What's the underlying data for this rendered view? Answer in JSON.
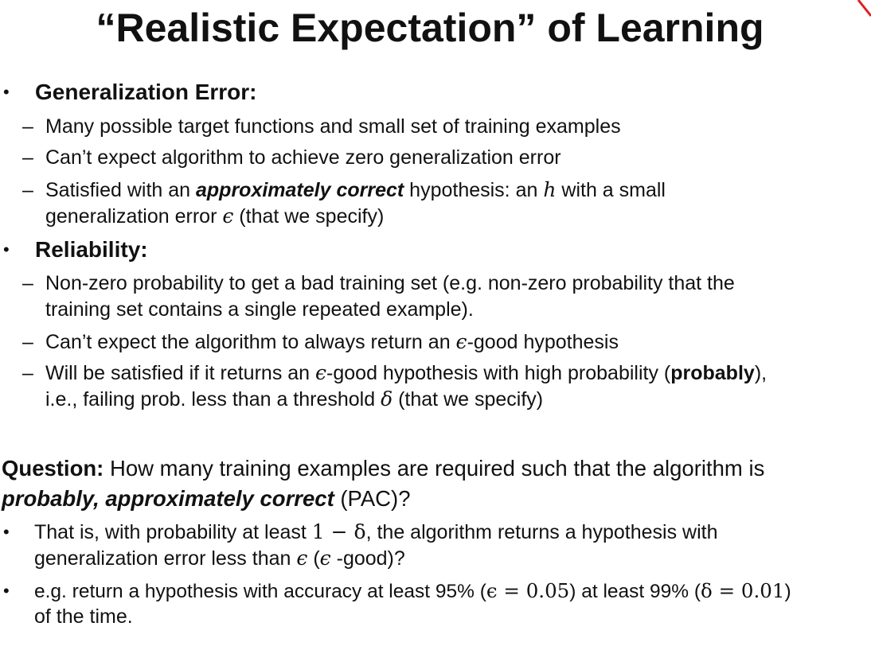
{
  "title": "“Realistic Expectation” of Learning",
  "accent_color": "#e02020",
  "gen": {
    "heading": "Generalization Error:",
    "item1": "Many possible target functions and small set of training examples",
    "item2": "Can’t expect algorithm to achieve zero generalization error",
    "item3_a": "Satisfied with an ",
    "item3_em": "approximately correct",
    "item3_b": " hypothesis: an ",
    "item3_h": "h",
    "item3_c": " with a small",
    "item3_l2": "generalization error ",
    "item3_eps": "ϵ",
    "item3_d": " (that we specify)"
  },
  "rel": {
    "heading": "Reliability:",
    "item1_l1": "Non-zero probability to get a bad training set (e.g. non-zero probability that the",
    "item1_l2": "training set contains a single repeated example).",
    "item2_a": "Can’t expect the algorithm to always return an ",
    "item2_eps": "ϵ",
    "item2_b": "-good hypothesis",
    "item3_a": "Will be satisfied if it returns an ",
    "item3_eps": "ϵ",
    "item3_b": "-good hypothesis with high probability (",
    "item3_bold": "probably",
    "item3_c": "),",
    "item3_l2a": "i.e., failing prob. less than a threshold ",
    "item3_delta": "δ",
    "item3_l2b": " (that we specify)"
  },
  "question": {
    "label": "Question:",
    "text1": " How many training examples are required such that the algorithm is",
    "em": "probably, approximately correct",
    "text2": " (PAC)?",
    "b1_a": "That is, with probability at least ",
    "b1_math": "1 − δ",
    "b1_b": ", the algorithm returns a hypothesis with",
    "b1_l2a": "generalization error less than ",
    "b1_eps": "ϵ",
    "b1_l2b": " (",
    "b1_eps2": "ϵ",
    "b1_l2c": " -good)?",
    "b2_a": "e.g. return a hypothesis with accuracy at least 95% (",
    "b2_m1": "ϵ = 0.05",
    "b2_b": ") at least 99% (",
    "b2_m2": "δ = 0.01",
    "b2_c": ")",
    "b2_l2": "of the time."
  }
}
